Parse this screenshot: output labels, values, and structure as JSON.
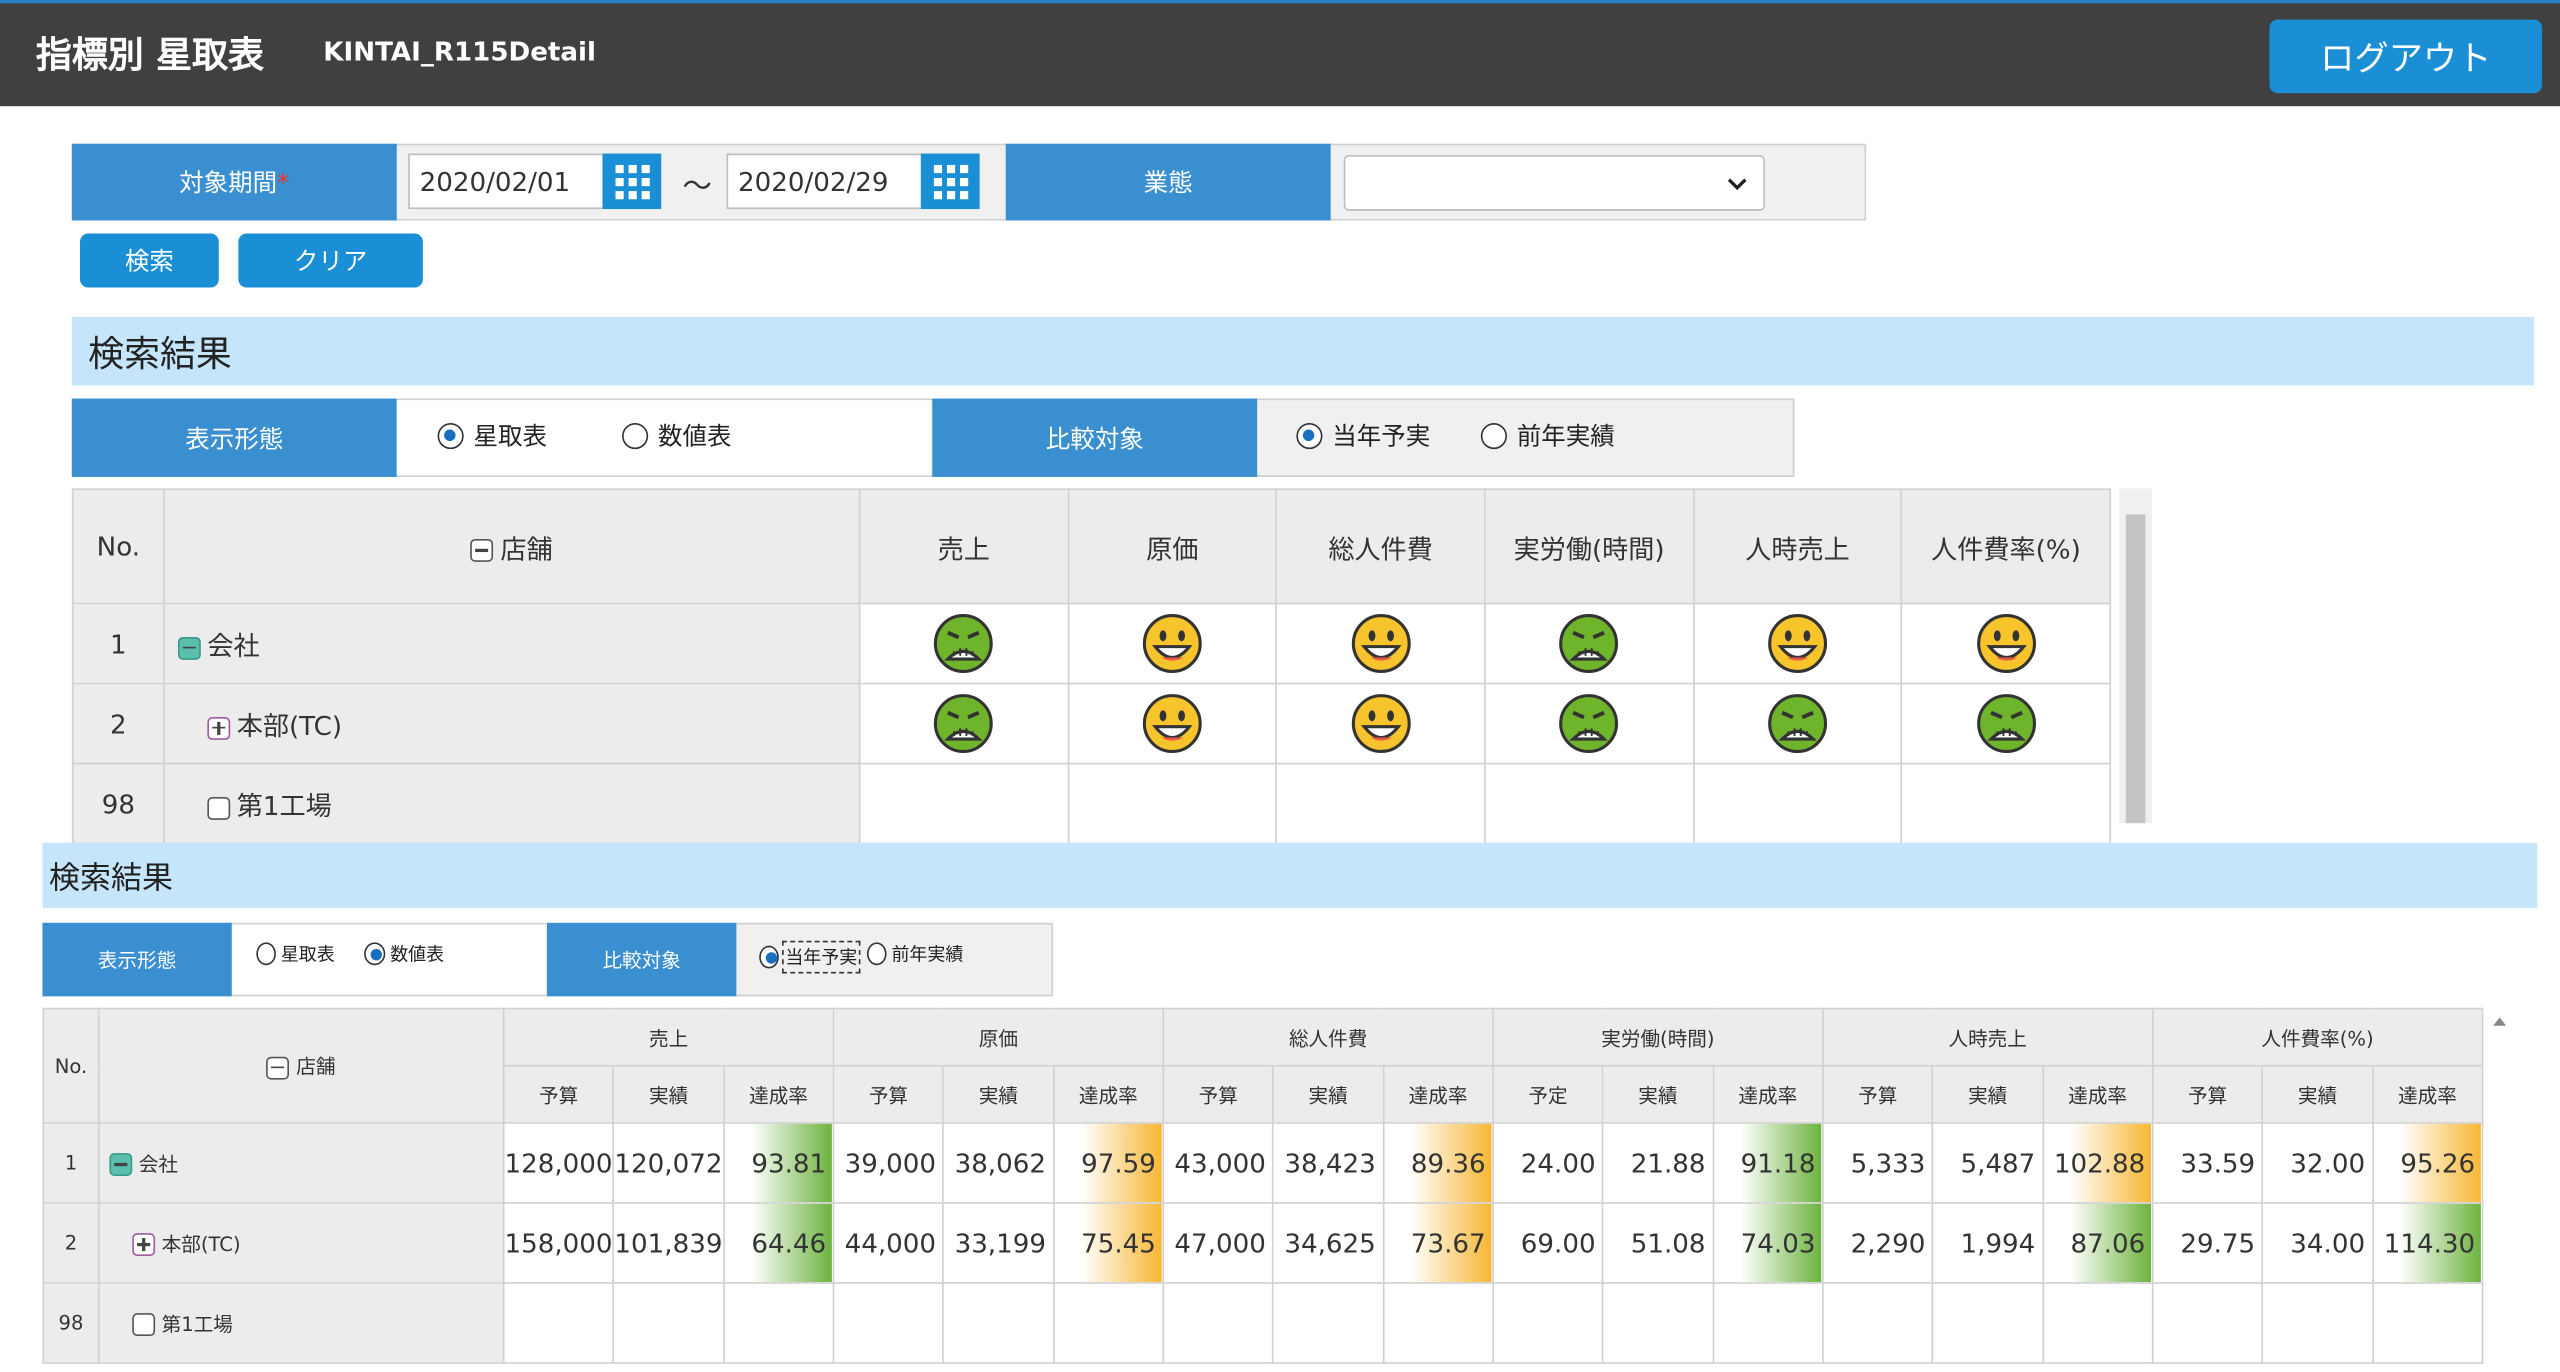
{
  "header": {
    "title": "指標別 星取表",
    "subtitle": "KINTAI_R115Detail",
    "logout": "ログアウト"
  },
  "search": {
    "period_label": "対象期間",
    "required": "*",
    "from": "2020/02/01",
    "tilde": "～",
    "to": "2020/02/29",
    "type_label": "業態",
    "search_button": "検索",
    "clear_button": "クリア"
  },
  "results1": {
    "title": "検索結果",
    "display_label": "表示形態",
    "display_options": [
      "星取表",
      "数値表"
    ],
    "compare_label": "比較対象",
    "compare_options": [
      "当年予実",
      "前年実績"
    ],
    "table": {
      "headers": [
        "No.",
        "店舗",
        "売上",
        "原価",
        "総人件費",
        "実労働(時間)",
        "人時売上",
        "人件費率(%)"
      ],
      "rows": [
        {
          "no": "1",
          "name": "会社"
        },
        {
          "no": "2",
          "name": "本部(TC)"
        },
        {
          "no": "98",
          "name": "第1工場"
        }
      ]
    }
  },
  "results2": {
    "title": "検索結果",
    "display_label": "表示形態",
    "display_options": [
      "星取表",
      "数値表"
    ],
    "compare_label": "比較対象",
    "compare_options": [
      "当年予実",
      "前年実績"
    ],
    "table": {
      "headers": [
        "No.",
        "店舗",
        "売上",
        "原価",
        "総人件費",
        "実労働(時間)",
        "人時売上",
        "人件費率(%)"
      ],
      "subheaders": [
        "予算",
        "実績",
        "達成率",
        "予算",
        "実績",
        "達成率",
        "予算",
        "実績",
        "達成率",
        "予定",
        "実績",
        "達成率",
        "予算",
        "実績",
        "達成率",
        "予算",
        "実績",
        "達成率"
      ],
      "rows": [
        {
          "no": "1",
          "name": "会社",
          "values": [
            "128,000",
            "120,072",
            "93.81",
            "39,000",
            "38,062",
            "97.59",
            "43,000",
            "38,423",
            "89.36",
            "24.00",
            "21.88",
            "91.18",
            "5,333",
            "5,487",
            "102.88",
            "33.59",
            "32.00",
            "95.26"
          ]
        },
        {
          "no": "2",
          "name": "本部(TC)",
          "values": [
            "158,000",
            "101,839",
            "64.46",
            "44,000",
            "33,199",
            "75.45",
            "47,000",
            "34,625",
            "73.67",
            "69.00",
            "51.08",
            "74.03",
            "2,290",
            "1,994",
            "87.06",
            "29.75",
            "34.00",
            "114.30"
          ]
        },
        {
          "no": "98",
          "name": "第1工場"
        }
      ]
    }
  }
}
